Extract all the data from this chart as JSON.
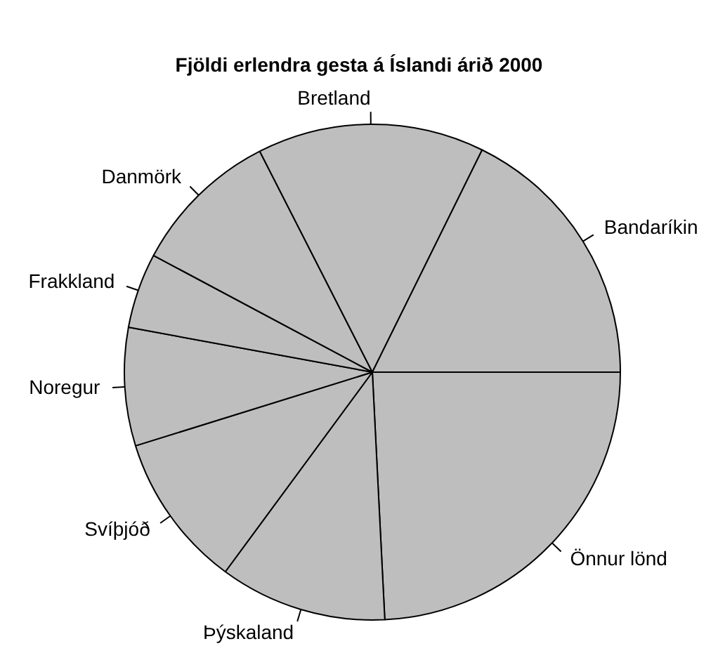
{
  "chart_data": {
    "type": "pie",
    "title": "Fjöldi erlendra gesta á Íslandi árið 2000",
    "categories": [
      "Bandaríkin",
      "Bretland",
      "Danmörk",
      "Frakkland",
      "Noregur",
      "Svíþjóð",
      "Þýskaland",
      "Önnur lönd"
    ],
    "values": [
      17.7,
      14.8,
      9.7,
      4.9,
      7.7,
      10.1,
      10.9,
      24.2
    ],
    "colors": [
      "#bebebe",
      "#bebebe",
      "#bebebe",
      "#bebebe",
      "#bebebe",
      "#bebebe",
      "#bebebe",
      "#bebebe"
    ],
    "legend": false
  }
}
